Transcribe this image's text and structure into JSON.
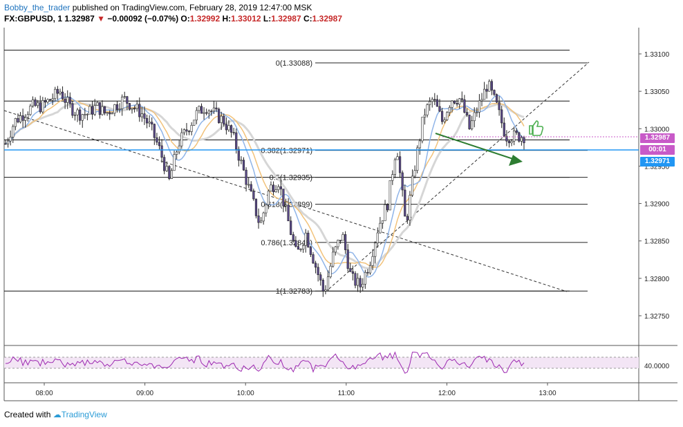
{
  "header": {
    "author": "Bobby_the_trader",
    "published_text": "published on TradingView.com, February 28, 2019 12:47:00 MSK",
    "symbol": "FX:GBPUSD, 1",
    "last": "1.32987",
    "change": "−0.00092 (−0.07%)",
    "o_label": "O:",
    "o": "1.32992",
    "h_label": "H:",
    "h": "1.33012",
    "l_label": "L:",
    "l": "1.32987",
    "c_label": "C:",
    "c": "1.32987"
  },
  "footer": {
    "created_with": "Created with",
    "brand": "TradingView"
  },
  "badges": {
    "last_price": "1.32987",
    "countdown": "00:01",
    "line_price": "1.32971"
  },
  "colors": {
    "candle_body": "#5b4a8b",
    "ma_blue": "#8fb4e8",
    "ma_orange": "#f2c27a",
    "ma_grey": "#d6d6d6",
    "rsi_line": "#9c27b0",
    "rsi_band": "#f3e5f5",
    "last_price_badge": "#c85ac8",
    "line_badge": "#2196f3",
    "countdown_badge": "#c85ac8",
    "arrow": "#2e7d32",
    "thumb": "#4caf50"
  },
  "chart_data": {
    "type": "candlestick",
    "x_ticks": [
      "08:00",
      "09:00",
      "10:00",
      "11:00",
      "12:00",
      "13:00"
    ],
    "y_ticks": [
      "1.33100",
      "1.33050",
      "1.33000",
      "1.32950",
      "1.32900",
      "1.32850",
      "1.32800",
      "1.32750"
    ],
    "ylim": [
      1.327,
      1.3313
    ],
    "fib_levels": [
      {
        "label": "0(1.33088)",
        "value": 1.33088
      },
      {
        "label": "0.382(1.32971)",
        "value": 1.32971
      },
      {
        "label": "0.5(1.32935)",
        "value": 1.32935
      },
      {
        "label": "0.618(1.32899)",
        "value": 1.32899
      },
      {
        "label": "0.786(1.32848)",
        "value": 1.32848
      },
      {
        "label": "1(1.32783)",
        "value": 1.32783
      }
    ],
    "horizontal_levels": [
      1.33105,
      1.33037,
      1.32985,
      1.32935,
      1.32783
    ],
    "rsi": {
      "tick": "40.0000",
      "ylim": [
        0,
        100
      ],
      "upper": 70,
      "lower": 30
    },
    "series_price_path": [
      1.3298,
      1.3301,
      1.3302,
      1.3303,
      1.3303,
      1.3304,
      1.3305,
      1.3303,
      1.3302,
      1.3302,
      1.3303,
      1.3302,
      1.3303,
      1.3304,
      1.3303,
      1.3302,
      1.33,
      1.3297,
      1.3293,
      1.3298,
      1.33,
      1.3302,
      1.3303,
      1.3302,
      1.3301,
      1.3299,
      1.3295,
      1.3291,
      1.3287,
      1.3292,
      1.3293,
      1.3288,
      1.3283,
      1.3286,
      1.3282,
      1.3278,
      1.3283,
      1.3286,
      1.328,
      1.3279,
      1.3282,
      1.3287,
      1.329,
      1.3298,
      1.3287,
      1.3295,
      1.3302,
      1.3304,
      1.3301,
      1.3304,
      1.3304,
      1.33,
      1.3303,
      1.3306,
      1.3303,
      1.3299,
      1.3299,
      1.3299
    ]
  }
}
